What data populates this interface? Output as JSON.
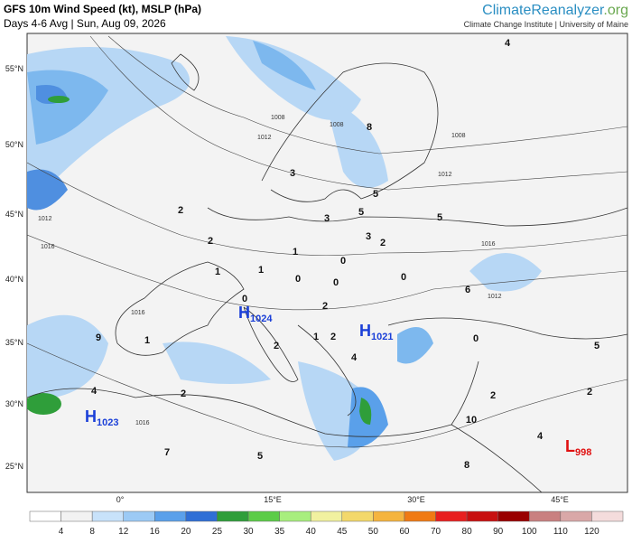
{
  "header": {
    "title": "GFS 10m Wind Speed (kt), MSLP (hPa)",
    "subtitle": "Days 4-6 Avg | Sun, Aug 09, 2026",
    "brand_main": "ClimateReanalyzer",
    "brand_suffix": ".org",
    "institute": "Climate Change Institute | University of Maine"
  },
  "map": {
    "lat_labels": [
      "55°N",
      "50°N",
      "45°N",
      "40°N",
      "35°N",
      "30°N",
      "25°N"
    ],
    "lon_labels": [
      "0°",
      "15°E",
      "30°E",
      "45°E"
    ],
    "pressure_centers": [
      {
        "letter": "H",
        "value": "1024"
      },
      {
        "letter": "H",
        "value": "1021"
      },
      {
        "letter": "H",
        "value": "1023"
      },
      {
        "letter": "L",
        "value": "998"
      }
    ],
    "wind_labels": [
      "2",
      "2",
      "1",
      "1",
      "1",
      "0",
      "0",
      "0",
      "3",
      "2",
      "5",
      "0",
      "5",
      "5",
      "3",
      "8",
      "2",
      "1",
      "9",
      "4",
      "2",
      "7",
      "5",
      "2",
      "4",
      "10",
      "2",
      "4",
      "8",
      "2",
      "5",
      "0",
      "4",
      "6",
      "2",
      "3",
      "1",
      "0"
    ],
    "isobar_labels": [
      "1008",
      "1012",
      "1008",
      "1012",
      "1008",
      "1012",
      "1016",
      "1016",
      "1016",
      "1012",
      "1016"
    ]
  },
  "colorbar": {
    "ticks": [
      4,
      8,
      12,
      16,
      20,
      25,
      30,
      35,
      40,
      45,
      50,
      60,
      70,
      80,
      90,
      100,
      110,
      120
    ],
    "colors": [
      "#ffffff",
      "#f2f2f2",
      "#c8e2fa",
      "#9ccaf5",
      "#5aa0ea",
      "#2f6fd6",
      "#2f9e3a",
      "#5ccc48",
      "#a8ee7e",
      "#f1f1a0",
      "#f3d86b",
      "#f5b43f",
      "#f07a14",
      "#e82020",
      "#c81010",
      "#990000",
      "#c98080",
      "#d9a8a8",
      "#f4dcdc"
    ]
  }
}
